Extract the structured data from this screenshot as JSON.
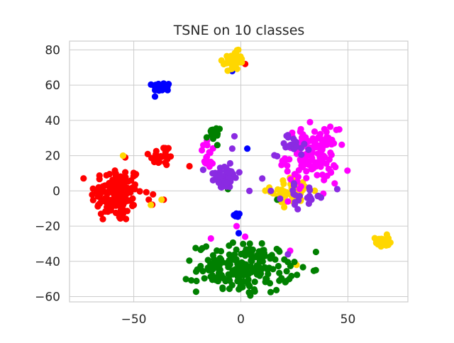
{
  "chart_data": {
    "type": "scatter",
    "title": "TSNE on 10 classes",
    "xlabel": "",
    "ylabel": "",
    "xlim": [
      -80,
      78
    ],
    "ylim": [
      -63,
      85
    ],
    "x_ticks": [
      -50,
      0,
      50
    ],
    "x_tick_labels": [
      "−50",
      "0",
      "50"
    ],
    "y_ticks": [
      -60,
      -40,
      -20,
      0,
      20,
      40,
      60,
      80
    ],
    "y_tick_labels": [
      "−60",
      "−40",
      "−20",
      "0",
      "20",
      "40",
      "60",
      "80"
    ],
    "grid": true,
    "legend": "none",
    "series": [
      {
        "color": "#ff0000",
        "clusters": [
          {
            "cx": -58,
            "cy": -2,
            "sx": 6,
            "sy": 8,
            "n": 140
          },
          {
            "cx": -37,
            "cy": 20,
            "sx": 3,
            "sy": 3,
            "n": 25
          }
        ],
        "points": [
          [
            -24,
            14
          ],
          [
            2,
            72
          ],
          [
            -43,
            -5
          ],
          [
            -36,
            -5
          ],
          [
            -54,
            19
          ],
          [
            -41,
            -2
          ]
        ]
      },
      {
        "color": "#0000ff",
        "clusters": [
          {
            "cx": -37,
            "cy": 59,
            "sx": 2,
            "sy": 1.3,
            "n": 30
          },
          {
            "cx": -2,
            "cy": -14,
            "sx": 0.8,
            "sy": 0.8,
            "n": 8
          }
        ],
        "points": [
          [
            3,
            24
          ],
          [
            -1,
            -24
          ],
          [
            -4,
            68
          ]
        ]
      },
      {
        "color": "#ffd700",
        "clusters": [
          {
            "cx": -3,
            "cy": 74,
            "sx": 2,
            "sy": 2.5,
            "n": 45
          },
          {
            "cx": 66,
            "cy": -29,
            "sx": 1.6,
            "sy": 1.8,
            "n": 30
          },
          {
            "cx": 24,
            "cy": 0,
            "sx": 5,
            "sy": 4,
            "n": 45
          }
        ],
        "points": [
          [
            -55,
            20
          ],
          [
            -42,
            -8
          ],
          [
            -37,
            -5
          ],
          [
            -11,
            33
          ],
          [
            20,
            4
          ],
          [
            26,
            -42
          ],
          [
            -9,
            74
          ]
        ]
      },
      {
        "color": "#ff00ff",
        "clusters": [
          {
            "cx": 33,
            "cy": 20,
            "sx": 6,
            "sy": 7.5,
            "n": 130
          },
          {
            "cx": -15,
            "cy": 20,
            "sx": 2,
            "sy": 4,
            "n": 18
          }
        ],
        "points": [
          [
            -14,
            -27
          ],
          [
            -2,
            -20
          ],
          [
            2,
            -26
          ],
          [
            23,
            -34
          ],
          [
            22,
            -6
          ],
          [
            28,
            35
          ],
          [
            39,
            35
          ]
        ]
      },
      {
        "color": "#008000",
        "clusters": [
          {
            "cx": 2,
            "cy": -44,
            "sx": 11,
            "sy": 7,
            "n": 200
          },
          {
            "cx": -13,
            "cy": 32,
            "sx": 1.5,
            "sy": 2,
            "n": 22
          }
        ],
        "points": [
          [
            -10,
            7
          ],
          [
            17,
            -5
          ],
          [
            -6,
            1
          ]
        ]
      },
      {
        "color": "#8a2be2",
        "clusters": [
          {
            "cx": -8,
            "cy": 8,
            "sx": 4,
            "sy": 3.5,
            "n": 40
          },
          {
            "cx": 24,
            "cy": 26,
            "sx": 4,
            "sy": 3,
            "n": 22
          },
          {
            "cx": 30,
            "cy": -3,
            "sx": 5,
            "sy": 3,
            "n": 20
          }
        ],
        "points": [
          [
            -4,
            24
          ],
          [
            -9,
            2
          ],
          [
            4,
            0
          ],
          [
            14,
            0
          ],
          [
            10,
            7
          ],
          [
            -3,
            31
          ],
          [
            -13,
            6
          ],
          [
            22,
            -36
          ],
          [
            45,
            1
          ],
          [
            33,
            -5
          ]
        ]
      }
    ]
  }
}
